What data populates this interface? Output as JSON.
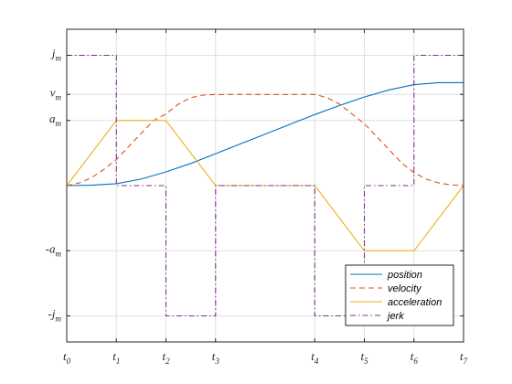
{
  "chart_data": {
    "type": "line",
    "x_ticks": [
      {
        "value": 0,
        "main": "t",
        "sub": "0"
      },
      {
        "value": 1,
        "main": "t",
        "sub": "1"
      },
      {
        "value": 2,
        "main": "t",
        "sub": "2"
      },
      {
        "value": 3,
        "main": "t",
        "sub": "3"
      },
      {
        "value": 5,
        "main": "t",
        "sub": "4"
      },
      {
        "value": 6,
        "main": "t",
        "sub": "5"
      },
      {
        "value": 7,
        "main": "t",
        "sub": "6"
      },
      {
        "value": 8,
        "main": "t",
        "sub": "7"
      }
    ],
    "y_ticks": [
      {
        "value": 2.0,
        "main": "j",
        "sub": "m"
      },
      {
        "value": 1.4,
        "main": "v",
        "sub": "m"
      },
      {
        "value": 1.0,
        "main": "a",
        "sub": "m"
      },
      {
        "value": -1.0,
        "main": "-a",
        "sub": "m"
      },
      {
        "value": -2.0,
        "main": "-j",
        "sub": "m"
      }
    ],
    "xlim": [
      0,
      8
    ],
    "ylim": [
      -2.4,
      2.4
    ],
    "grid": true,
    "legend_position": "bottom-right",
    "series": [
      {
        "name": "position",
        "color": "#0072BD",
        "dash": "solid",
        "x": [
          0,
          0.5,
          1,
          1.5,
          2,
          2.5,
          3,
          3.5,
          4,
          4.5,
          5,
          5.5,
          6,
          6.5,
          7,
          7.5,
          8
        ],
        "y": [
          0,
          0.005,
          0.03,
          0.1,
          0.21,
          0.34,
          0.49,
          0.64,
          0.79,
          0.94,
          1.09,
          1.23,
          1.36,
          1.47,
          1.55,
          1.58,
          1.58
        ]
      },
      {
        "name": "velocity",
        "color": "#D95319",
        "dash": "dashed",
        "x": [
          0,
          0.25,
          0.5,
          0.75,
          1,
          1.25,
          1.5,
          1.75,
          2,
          2.25,
          2.5,
          2.75,
          3,
          4,
          5,
          5.25,
          5.5,
          5.75,
          6,
          6.25,
          6.5,
          6.75,
          7,
          7.25,
          7.5,
          7.75,
          8
        ],
        "y": [
          0,
          0.04,
          0.12,
          0.25,
          0.4,
          0.6,
          0.8,
          1.0,
          1.1,
          1.25,
          1.35,
          1.39,
          1.4,
          1.4,
          1.4,
          1.35,
          1.25,
          1.1,
          0.95,
          0.75,
          0.55,
          0.35,
          0.2,
          0.1,
          0.04,
          0.01,
          0
        ]
      },
      {
        "name": "acceleration",
        "color": "#EDB120",
        "dash": "solid",
        "x": [
          0,
          1,
          2,
          3,
          5,
          6,
          7,
          8
        ],
        "y": [
          0,
          1,
          1,
          0,
          0,
          -1,
          -1,
          0
        ]
      },
      {
        "name": "jerk",
        "color": "#7E2F8E",
        "dash": "dashdot",
        "x": [
          0,
          1,
          1,
          2,
          2,
          3,
          3,
          5,
          5,
          6,
          6,
          7,
          7,
          8
        ],
        "y": [
          2,
          2,
          0,
          0,
          -2,
          -2,
          0,
          0,
          -2,
          -2,
          0,
          0,
          2,
          2
        ]
      }
    ]
  }
}
